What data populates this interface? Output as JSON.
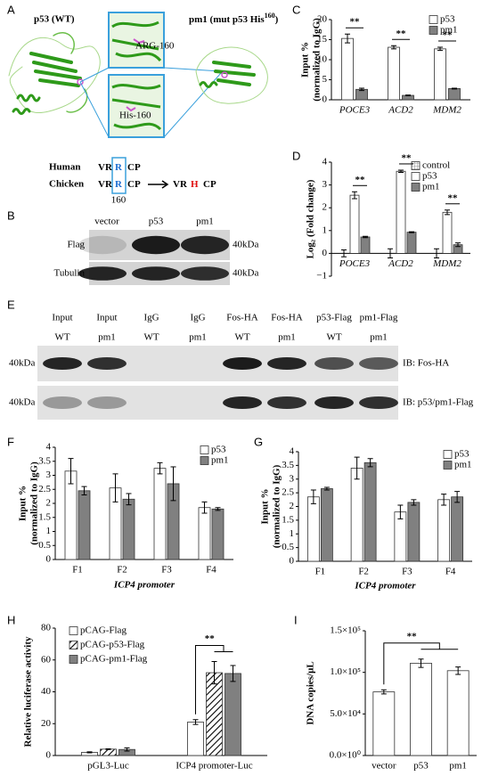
{
  "panel_a": {
    "label": "A",
    "wt_title": "p53 (WT)",
    "mut_title": {
      "text": "pm1 (mut p53 His",
      "sup": "160",
      "close": ")"
    },
    "arg_label": "ARG-160",
    "his_label": "His-160",
    "sequences": [
      {
        "species": "Human",
        "left": "VR",
        "mid": "R",
        "right": "CP"
      },
      {
        "species": "Chicken",
        "left": "VR",
        "mid": "R",
        "right": "CP"
      }
    ],
    "mutant": {
      "left": "VR",
      "mid": "H",
      "right": "CP"
    },
    "position": "160"
  },
  "panel_b": {
    "label": "B",
    "lanes": [
      "vector",
      "p53",
      "pm1"
    ],
    "rows": [
      {
        "name": "Flag",
        "size": "40kDa"
      },
      {
        "name": "Tubulin",
        "size": "40kDa"
      }
    ]
  },
  "panel_e": {
    "label": "E",
    "lanes": [
      {
        "top": "Input",
        "bottom": "WT"
      },
      {
        "top": "Input",
        "bottom": "pm1"
      },
      {
        "top": "IgG",
        "bottom": "WT"
      },
      {
        "top": "IgG",
        "bottom": "pm1"
      },
      {
        "top": "Fos-HA",
        "bottom": "WT"
      },
      {
        "top": "Fos-HA",
        "bottom": "pm1"
      },
      {
        "top": "p53-Flag",
        "bottom": "WT"
      },
      {
        "top": "pm1-Flag",
        "bottom": "pm1"
      }
    ],
    "rows": [
      {
        "size": "40kDa",
        "probe": "IB:  Fos-HA"
      },
      {
        "size": "40kDa",
        "probe": "IB:  p53/pm1-Flag"
      }
    ]
  },
  "chart_data": [
    {
      "type": "bar",
      "panel": "C",
      "categories": [
        "POCE3",
        "ACD2",
        "MDM2"
      ],
      "series": [
        {
          "name": "p53",
          "color": "#ffffff",
          "values": [
            15.3,
            13.1,
            12.7
          ],
          "errors": [
            1.1,
            0.4,
            0.4
          ]
        },
        {
          "name": "pm1",
          "color": "#808080",
          "values": [
            2.6,
            1.1,
            2.8
          ],
          "errors": [
            0.3,
            0.1,
            0.1
          ]
        }
      ],
      "ylabel": [
        "Input %",
        "(normalized to IgG)"
      ],
      "ylim": [
        0,
        20
      ],
      "yticks": [
        0,
        5,
        10,
        15,
        20
      ],
      "annotations": [
        "**",
        "**",
        "**"
      ],
      "legend": "upper right"
    },
    {
      "type": "bar",
      "panel": "D",
      "categories": [
        "POCE3",
        "ACD2",
        "MDM2"
      ],
      "series": [
        {
          "name": "control",
          "color": "#ffffff",
          "pattern": "crosshatch",
          "values": [
            0,
            0,
            0
          ],
          "errors": [
            0.15,
            0.2,
            0.2
          ]
        },
        {
          "name": "p53",
          "color": "#ffffff",
          "values": [
            2.55,
            3.6,
            1.8
          ],
          "errors": [
            0.15,
            0.05,
            0.1
          ]
        },
        {
          "name": "pm1",
          "color": "#808080",
          "values": [
            0.72,
            0.93,
            0.38
          ],
          "errors": [
            0.03,
            0.02,
            0.08
          ]
        }
      ],
      "ylabel": "Log₂ (Fold change)",
      "ylim": [
        -1,
        4
      ],
      "yticks": [
        {
          "value": -1,
          "label": "−1"
        },
        0,
        1,
        2,
        3,
        4
      ],
      "annotations": [
        "**",
        "**",
        "**"
      ],
      "legend": "upper right"
    },
    {
      "type": "bar",
      "panel": "F",
      "categories": [
        "F1",
        "F2",
        "F3",
        "F4"
      ],
      "series": [
        {
          "name": "p53",
          "color": "#ffffff",
          "values": [
            3.15,
            2.55,
            3.25,
            1.85
          ],
          "errors": [
            0.45,
            0.5,
            0.2,
            0.2
          ]
        },
        {
          "name": "pm1",
          "color": "#808080",
          "values": [
            2.45,
            2.15,
            2.7,
            1.8
          ],
          "errors": [
            0.15,
            0.2,
            0.6,
            0.05
          ]
        }
      ],
      "xlabel": "ICP4 promoter",
      "ylabel": [
        "Input %",
        "(normalized to IgG)"
      ],
      "ylim": [
        0,
        4
      ],
      "yticks": [
        0,
        0.5,
        1,
        1.5,
        2,
        2.5,
        3,
        3.5,
        4
      ],
      "legend": "upper right"
    },
    {
      "type": "bar",
      "panel": "G",
      "categories": [
        "F1",
        "F2",
        "F3",
        "F4"
      ],
      "series": [
        {
          "name": "p53",
          "color": "#ffffff",
          "values": [
            2.35,
            3.4,
            1.8,
            2.25
          ],
          "errors": [
            0.25,
            0.4,
            0.25,
            0.2
          ]
        },
        {
          "name": "pm1",
          "color": "#808080",
          "values": [
            2.65,
            3.6,
            2.15,
            2.35
          ],
          "errors": [
            0.05,
            0.15,
            0.1,
            0.2
          ]
        }
      ],
      "xlabel": "ICP4 promoter",
      "ylabel": [
        "Input %",
        "(normalized to IgG)"
      ],
      "ylim": [
        0,
        4
      ],
      "yticks": [
        0,
        0.5,
        1,
        1.5,
        2,
        2.5,
        3,
        3.5,
        4
      ],
      "legend": "upper right"
    },
    {
      "type": "bar",
      "panel": "H",
      "categories": [
        "pGL3-Luc",
        "ICP4 promoter-Luc"
      ],
      "series": [
        {
          "name": "pCAG-Flag",
          "color": "#ffffff",
          "values": [
            2,
            21
          ],
          "errors": [
            0.3,
            1.5
          ]
        },
        {
          "name": "pCAG-p53-Flag",
          "color": "#ffffff",
          "pattern": "hatch",
          "values": [
            4,
            52
          ],
          "errors": [
            0.2,
            7
          ]
        },
        {
          "name": "pCAG-pm1-Flag",
          "color": "#808080",
          "values": [
            3.8,
            51.5
          ],
          "errors": [
            1,
            5
          ]
        }
      ],
      "ylabel": "Relative luciferase activity",
      "ylim": [
        0,
        80
      ],
      "yticks": [
        0,
        20,
        40,
        60,
        80
      ],
      "annotations": [
        "**"
      ],
      "legend": "upper left"
    },
    {
      "type": "bar",
      "panel": "I",
      "categories": [
        "vector",
        "p53",
        "pm1"
      ],
      "values": [
        76500,
        111000,
        102000
      ],
      "errors": [
        2500,
        5000,
        4500
      ],
      "color": "#ffffff",
      "ylabel": "DNA copies/μL",
      "ylim": [
        0,
        150000
      ],
      "yticks": [
        {
          "value": 0,
          "label": "0.0×10⁰"
        },
        {
          "value": 50000,
          "label": "5.0×10⁴"
        },
        {
          "value": 100000,
          "label": "1.0×10⁵"
        },
        {
          "value": 150000,
          "label": "1.5×10⁵"
        }
      ],
      "annotations": [
        "**"
      ]
    }
  ]
}
